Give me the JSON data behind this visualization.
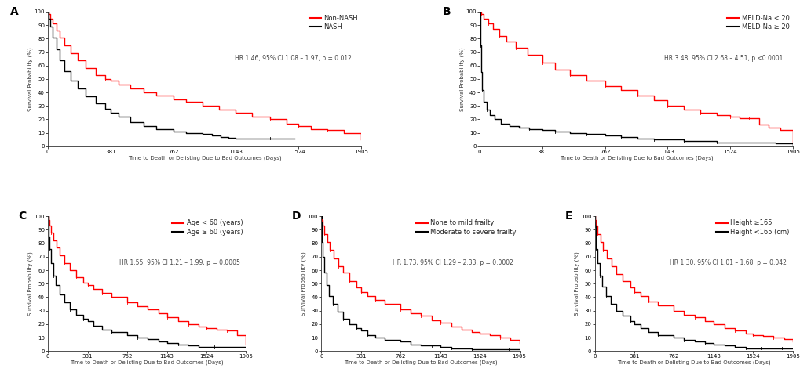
{
  "panels": [
    {
      "label": "A",
      "legend_lines": [
        "Non-NASH",
        "NASH"
      ],
      "hr_text": "HR 1.46, 95% CI 1.08 – 1.97, p = 0.012",
      "red_curve": {
        "x": [
          0,
          5,
          15,
          30,
          50,
          70,
          100,
          140,
          180,
          230,
          290,
          350,
          381,
          430,
          500,
          580,
          660,
          762,
          840,
          940,
          1040,
          1143,
          1240,
          1350,
          1450,
          1524,
          1600,
          1700,
          1800,
          1905
        ],
        "y": [
          100,
          98,
          95,
          91,
          86,
          81,
          75,
          69,
          64,
          58,
          53,
          50,
          49,
          46,
          43,
          40,
          38,
          35,
          33,
          30,
          27,
          25,
          22,
          20,
          17,
          15,
          13,
          12,
          10,
          5
        ]
      },
      "black_curve": {
        "x": [
          0,
          5,
          15,
          30,
          50,
          70,
          100,
          140,
          180,
          230,
          290,
          350,
          381,
          430,
          500,
          580,
          660,
          762,
          840,
          940,
          1000,
          1050,
          1100,
          1143,
          1200,
          1350,
          1500
        ],
        "y": [
          100,
          95,
          89,
          81,
          72,
          64,
          56,
          49,
          43,
          37,
          32,
          28,
          25,
          22,
          18,
          15,
          13,
          11,
          10,
          9,
          8,
          7,
          6.5,
          6,
          6,
          6,
          6
        ]
      }
    },
    {
      "label": "B",
      "legend_lines": [
        "MELD-Na < 20",
        "MELD-Na ≥ 20"
      ],
      "hr_text": "HR 3.48, 95% CI 2.68 – 4.51, p <0.0001",
      "red_curve": {
        "x": [
          0,
          10,
          25,
          50,
          80,
          120,
          160,
          220,
          290,
          381,
          460,
          550,
          650,
          762,
          860,
          960,
          1060,
          1143,
          1240,
          1340,
          1440,
          1524,
          1580,
          1640,
          1700,
          1760,
          1830,
          1905
        ],
        "y": [
          100,
          98,
          95,
          91,
          87,
          82,
          78,
          73,
          68,
          62,
          57,
          53,
          49,
          45,
          42,
          38,
          34,
          30,
          27,
          25,
          23,
          22,
          21,
          21,
          16,
          14,
          12,
          2
        ]
      },
      "black_curve": {
        "x": [
          0,
          3,
          8,
          15,
          25,
          40,
          60,
          90,
          130,
          180,
          240,
          300,
          381,
          460,
          550,
          650,
          762,
          860,
          960,
          1060,
          1143,
          1240,
          1340,
          1440,
          1524,
          1600,
          1700,
          1800,
          1905
        ],
        "y": [
          100,
          75,
          55,
          42,
          33,
          27,
          23,
          20,
          17,
          15,
          14,
          13,
          12,
          11,
          10,
          9,
          8,
          7,
          6,
          5,
          5,
          4,
          4,
          3,
          3,
          3,
          3,
          2,
          1
        ]
      }
    },
    {
      "label": "C",
      "legend_lines": [
        "Age < 60 (years)",
        "Age ≥ 60 (years)"
      ],
      "hr_text": "HR 1.55, 95% CI 1.21 – 1.99, p = 0.0005",
      "red_curve": {
        "x": [
          0,
          5,
          15,
          30,
          55,
          80,
          115,
          160,
          210,
          270,
          340,
          381,
          440,
          520,
          610,
          762,
          860,
          960,
          1060,
          1143,
          1250,
          1350,
          1450,
          1524,
          1620,
          1720,
          1820,
          1905
        ],
        "y": [
          100,
          97,
          93,
          88,
          82,
          77,
          71,
          65,
          60,
          55,
          51,
          49,
          46,
          43,
          40,
          36,
          33,
          31,
          28,
          25,
          22,
          20,
          18,
          17,
          16,
          15,
          12,
          5
        ]
      },
      "black_curve": {
        "x": [
          0,
          3,
          8,
          15,
          30,
          50,
          75,
          110,
          155,
          210,
          270,
          340,
          381,
          440,
          520,
          610,
          762,
          860,
          960,
          1060,
          1143,
          1250,
          1350,
          1450,
          1524,
          1600,
          1700,
          1800,
          1905
        ],
        "y": [
          100,
          93,
          85,
          76,
          65,
          56,
          49,
          42,
          36,
          31,
          27,
          24,
          22,
          19,
          16,
          14,
          12,
          10,
          9,
          7,
          6,
          5,
          4,
          3,
          3,
          3,
          3,
          3,
          3
        ]
      }
    },
    {
      "label": "D",
      "legend_lines": [
        "None to mild frailty",
        "Moderate to severe frailty"
      ],
      "hr_text": "HR 1.73, 95% CI 1.29 – 2.33, p = 0.0002",
      "red_curve": {
        "x": [
          0,
          5,
          15,
          30,
          55,
          80,
          115,
          160,
          210,
          270,
          340,
          381,
          440,
          520,
          610,
          762,
          860,
          960,
          1060,
          1143,
          1250,
          1350,
          1450,
          1524,
          1620,
          1720,
          1820,
          1905
        ],
        "y": [
          100,
          97,
          93,
          87,
          81,
          75,
          69,
          63,
          58,
          52,
          47,
          44,
          41,
          38,
          35,
          31,
          28,
          26,
          23,
          21,
          18,
          16,
          14,
          13,
          12,
          10,
          8,
          6
        ]
      },
      "black_curve": {
        "x": [
          0,
          3,
          8,
          15,
          30,
          50,
          75,
          110,
          155,
          210,
          270,
          340,
          381,
          440,
          520,
          610,
          762,
          860,
          960,
          1060,
          1143,
          1250,
          1350,
          1450,
          1524,
          1600,
          1700,
          1800,
          1905
        ],
        "y": [
          100,
          91,
          81,
          70,
          58,
          49,
          41,
          35,
          29,
          24,
          20,
          17,
          15,
          12,
          10,
          8,
          7,
          5,
          4,
          4,
          3,
          2,
          2,
          1,
          1,
          1,
          1,
          1,
          1
        ]
      }
    },
    {
      "label": "E",
      "legend_lines": [
        "Height ≥165",
        "Height <165 (cm)"
      ],
      "hr_text": "HR 1.30, 95% CI 1.01 – 1.68, p = 0.042",
      "red_curve": {
        "x": [
          0,
          5,
          15,
          30,
          55,
          80,
          115,
          160,
          210,
          270,
          340,
          381,
          440,
          520,
          610,
          762,
          860,
          960,
          1060,
          1143,
          1250,
          1350,
          1450,
          1524,
          1620,
          1720,
          1820,
          1905
        ],
        "y": [
          100,
          97,
          93,
          87,
          81,
          75,
          69,
          63,
          57,
          52,
          47,
          44,
          41,
          37,
          34,
          30,
          27,
          25,
          22,
          20,
          17,
          15,
          13,
          12,
          11,
          10,
          9,
          7
        ]
      },
      "black_curve": {
        "x": [
          0,
          3,
          8,
          15,
          30,
          50,
          75,
          110,
          155,
          210,
          270,
          340,
          381,
          440,
          520,
          610,
          762,
          860,
          960,
          1060,
          1143,
          1250,
          1350,
          1450,
          1524,
          1600,
          1700,
          1800,
          1905
        ],
        "y": [
          100,
          93,
          85,
          76,
          65,
          56,
          48,
          41,
          35,
          30,
          26,
          22,
          20,
          17,
          14,
          12,
          10,
          8,
          7,
          6,
          5,
          4,
          3,
          2,
          2,
          2,
          2,
          2,
          2
        ]
      }
    }
  ],
  "xlabel": "Time to Death or Delisting Due to Bad Outcomes (Days)",
  "ylabel": "Survival Probability (%)",
  "xticks": [
    0,
    381,
    762,
    1143,
    1524,
    1905
  ],
  "yticks": [
    0,
    10,
    20,
    30,
    40,
    50,
    60,
    70,
    80,
    90,
    100
  ],
  "xlim": [
    0,
    1905
  ],
  "ylim": [
    0,
    100
  ],
  "red_color": "#FF0000",
  "black_color": "#000000",
  "linewidth": 1.0,
  "bg_color": "#FFFFFF",
  "text_color": "#4a4a4a",
  "tick_label_size": 5,
  "font_size_axis_label": 5.0,
  "font_size_panel": 10,
  "font_size_legend": 6.0,
  "font_size_hr": 5.5
}
